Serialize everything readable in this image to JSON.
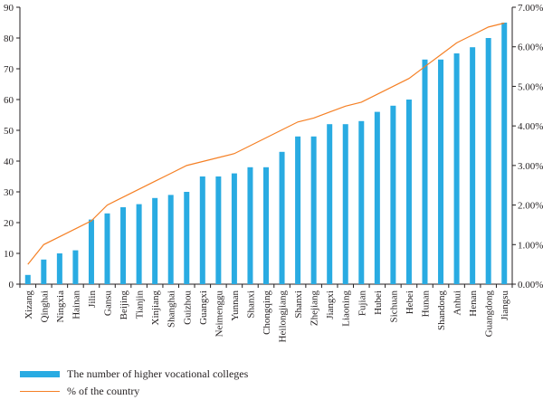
{
  "chart_data": {
    "type": "bar+line",
    "categories": [
      "Xizang",
      "Qinghai",
      "Ningxia",
      "Hainan",
      "Jilin",
      "Gansu",
      "Beijing",
      "Tianjin",
      "Xinjiang",
      "Shanghai",
      "Guizhou",
      "Guangxi",
      "Neimenggu",
      "Yunnan",
      "Shanxi",
      "Chongqing",
      "Heilongjiang",
      "Shanxi",
      "Zhejiang",
      "Jiangxi",
      "Liaoning",
      "Fujian",
      "Hubei",
      "Sichuan",
      "Hebei",
      "Hunan",
      "Shandong",
      "Anhui",
      "Henan",
      "Guangdong",
      "Jiangsu"
    ],
    "series": [
      {
        "name": "The number of higher vocational colleges",
        "kind": "bar",
        "axis": "left",
        "color": "#29abe2",
        "values": [
          3,
          8,
          10,
          11,
          21,
          23,
          25,
          26,
          28,
          29,
          30,
          35,
          35,
          36,
          38,
          38,
          43,
          48,
          48,
          52,
          52,
          53,
          56,
          58,
          60,
          73,
          73,
          75,
          77,
          80,
          85
        ]
      },
      {
        "name": "% of the country",
        "kind": "line",
        "axis": "right",
        "color": "#f58025",
        "values": [
          0.5,
          1.0,
          1.2,
          1.4,
          1.6,
          2.0,
          2.2,
          2.4,
          2.6,
          2.8,
          3.0,
          3.1,
          3.2,
          3.3,
          3.5,
          3.7,
          3.9,
          4.1,
          4.2,
          4.35,
          4.5,
          4.6,
          4.8,
          5.0,
          5.2,
          5.5,
          5.8,
          6.1,
          6.3,
          6.5,
          6.6
        ]
      }
    ],
    "y_left": {
      "min": 0,
      "max": 90,
      "ticks": [
        "0",
        "10",
        "20",
        "30",
        "40",
        "50",
        "60",
        "70",
        "80",
        "90"
      ]
    },
    "y_right": {
      "min": 0,
      "max": 7,
      "ticks": [
        "0.00%",
        "1.00%",
        "2.00%",
        "3.00%",
        "4.00%",
        "5.00%",
        "6.00%",
        "7.00%"
      ]
    },
    "grid": false,
    "legend_position": "bottom-left"
  }
}
